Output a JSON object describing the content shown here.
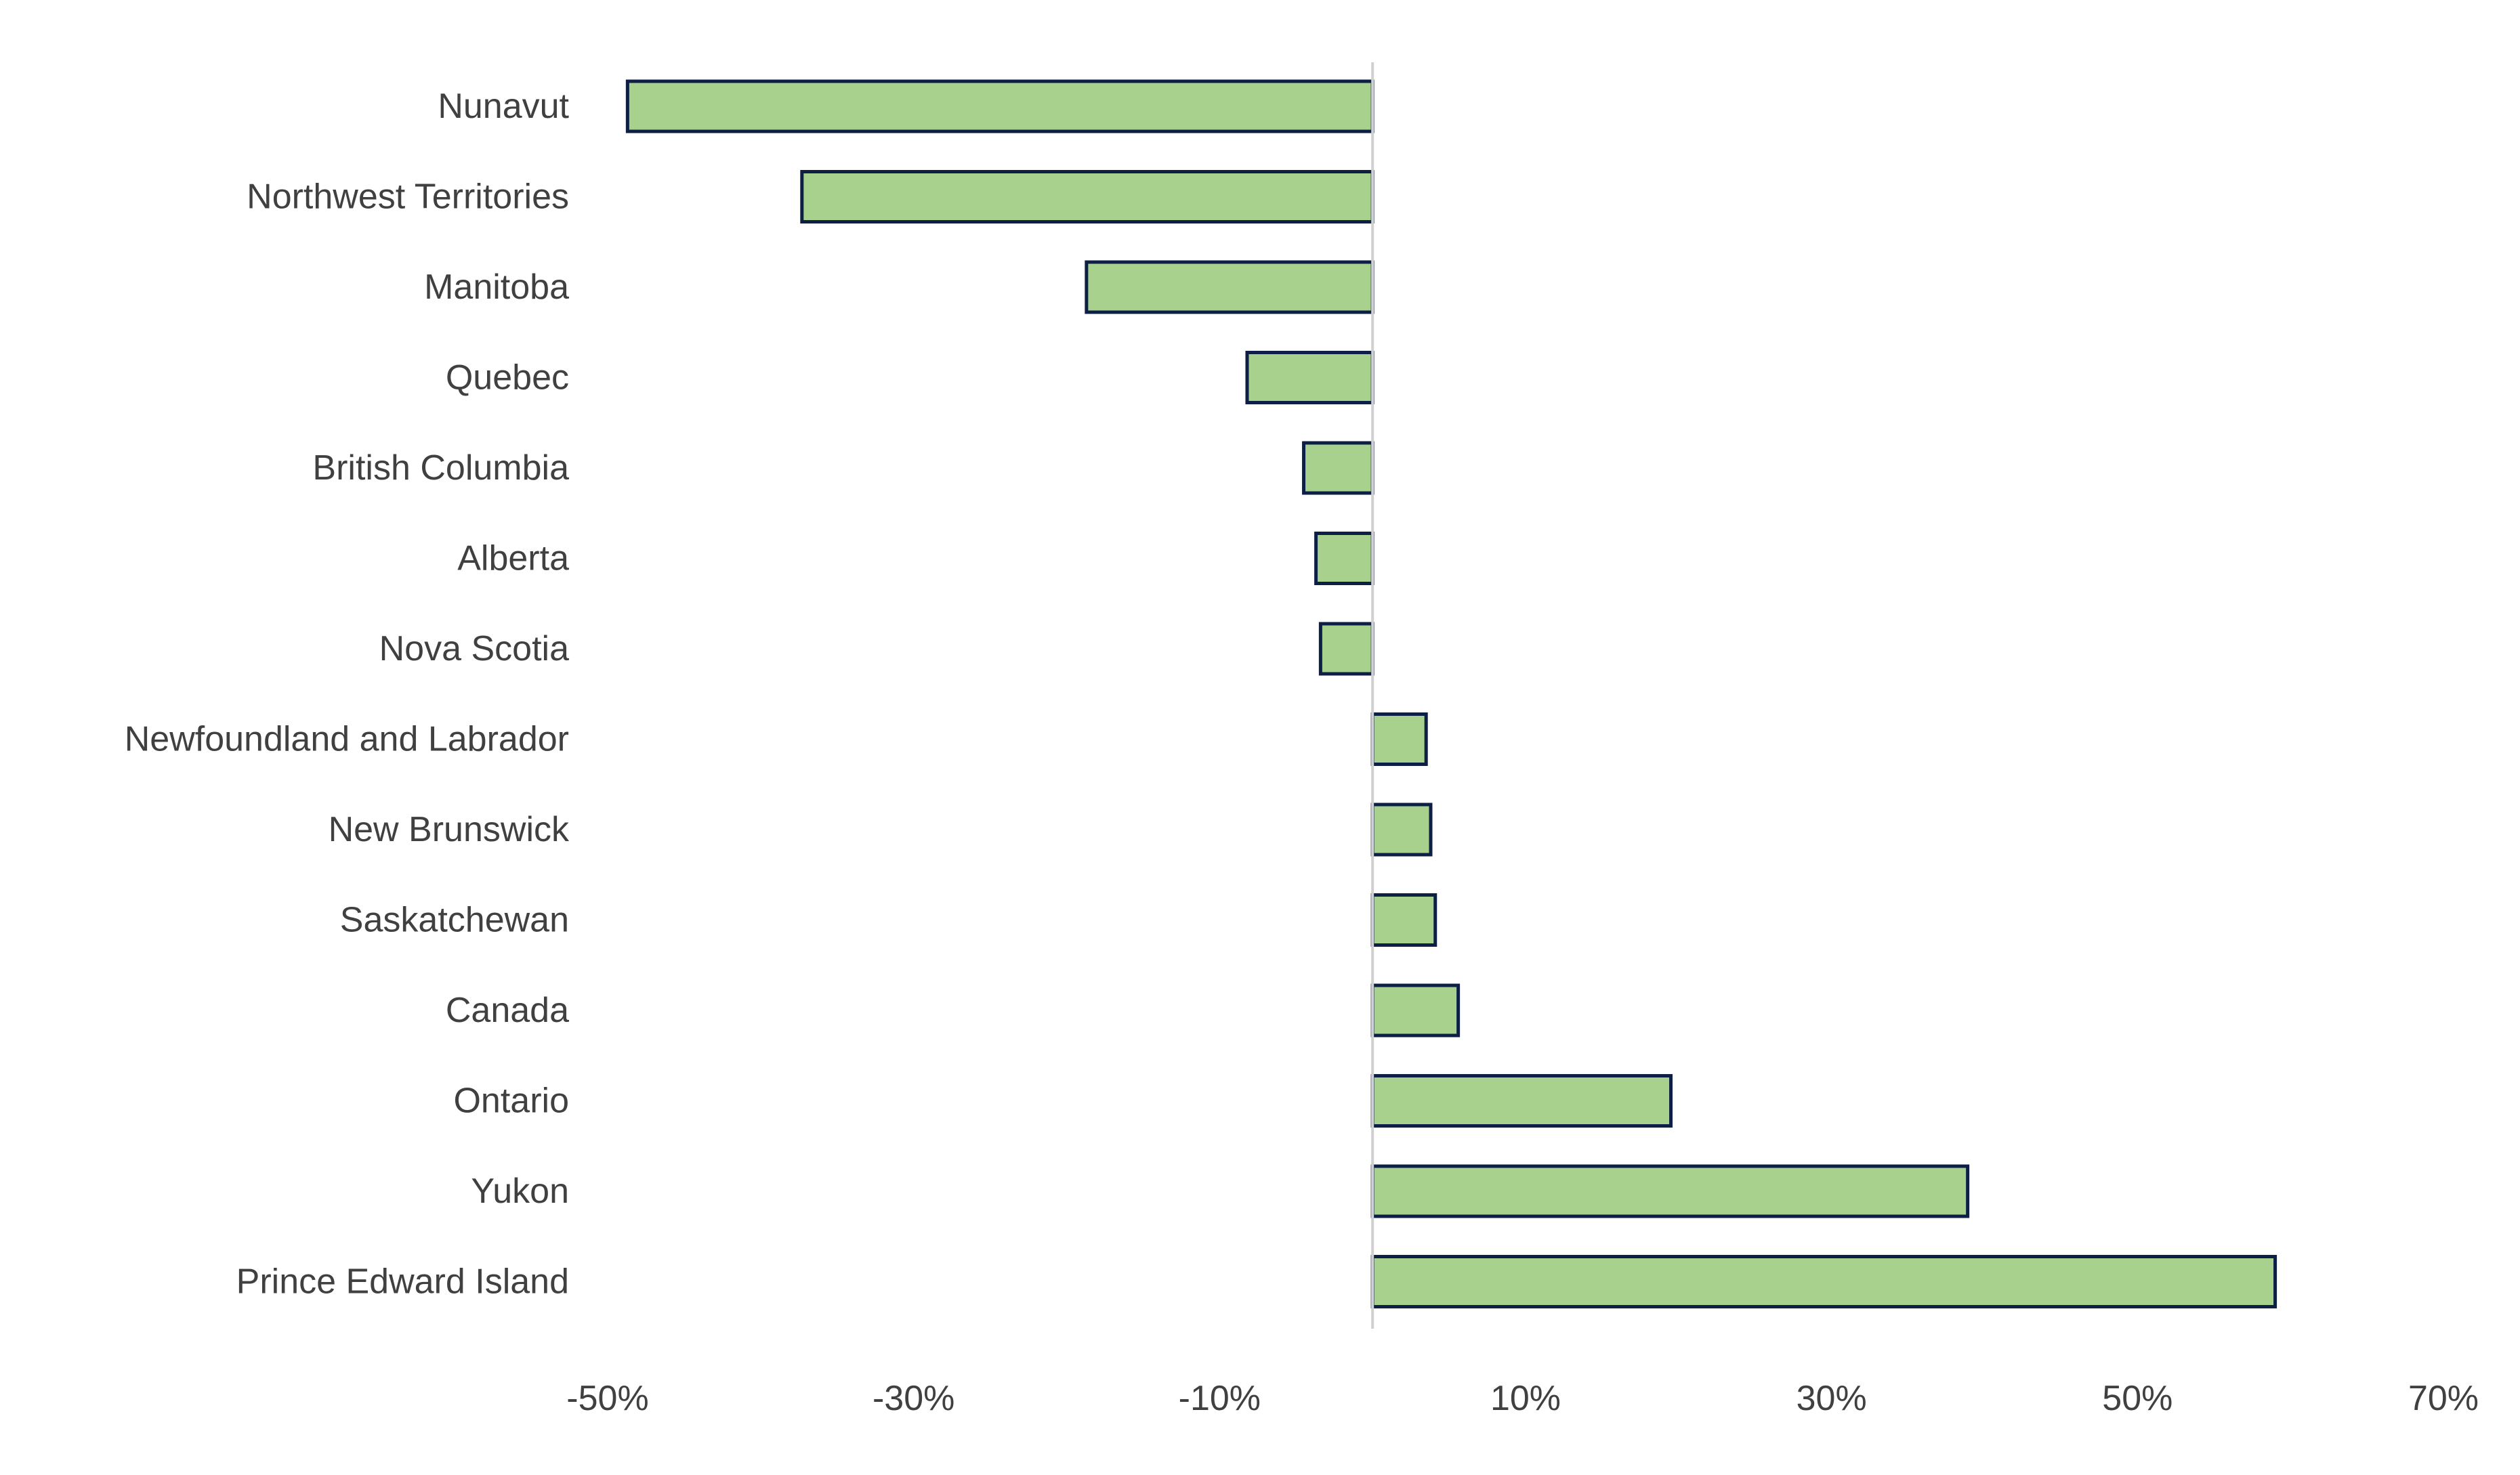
{
  "chart_data": {
    "type": "bar",
    "orientation": "horizontal",
    "title": "",
    "xlabel": "",
    "ylabel": "",
    "categories": [
      "Nunavut",
      "Northwest Territories",
      "Manitoba",
      "Quebec",
      "British Columbia",
      "Alberta",
      "Nova Scotia",
      "Newfoundland and Labrador",
      "New Brunswick",
      "Saskatchewan",
      "Canada",
      "Ontario",
      "Yukon",
      "Prince Edward Island"
    ],
    "values": [
      -48.7,
      -37.3,
      -18.7,
      -8.2,
      -4.5,
      -3.7,
      -3.4,
      3.5,
      3.8,
      4.1,
      5.6,
      19.5,
      38.9,
      59.0
    ],
    "xlim": [
      -50,
      70
    ],
    "xticks": [
      -50,
      -30,
      -10,
      10,
      30,
      50,
      70
    ],
    "xtick_labels": [
      "-50%",
      "-30%",
      "-10%",
      "10%",
      "30%",
      "50%",
      "70%"
    ],
    "grid": false,
    "legend": "none",
    "colors": {
      "bar_fill": "#a9d18e",
      "bar_stroke": "#0d1f45",
      "zero_line": "#d0d0d0",
      "text": "#404040"
    }
  }
}
